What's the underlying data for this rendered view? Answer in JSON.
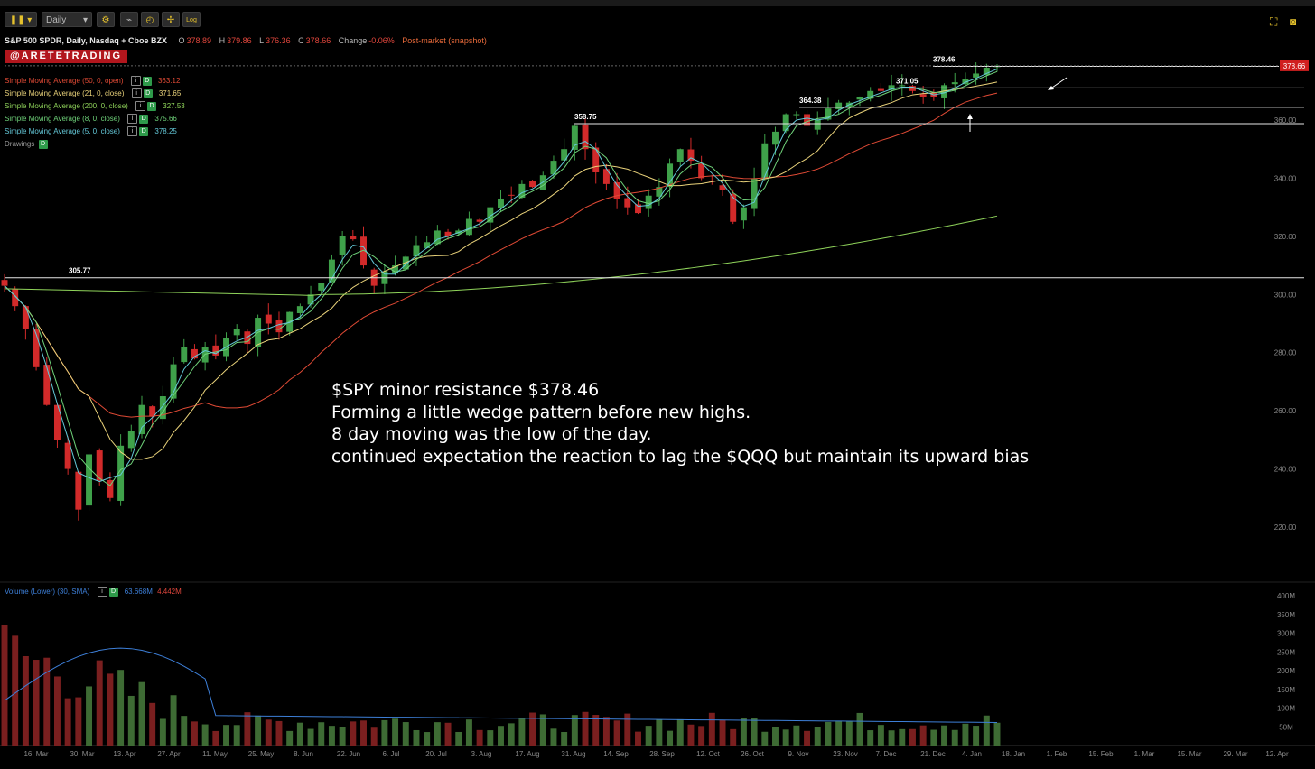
{
  "toolbar": {
    "timeframe": "Daily",
    "log_label": "Log",
    "icons": [
      "pause-icon",
      "chevron-down-icon",
      "gear-icon",
      "draw-icon",
      "clock-icon",
      "crosshair-icon",
      "log-scale-icon",
      "expand-icon",
      "camera-icon"
    ]
  },
  "header": {
    "symbol": "S&P 500 SPDR, Daily, Nasdaq + Cboe BZX",
    "open_label": "O",
    "open": "378.89",
    "high_label": "H",
    "high": "379.86",
    "low_label": "L",
    "low": "376.36",
    "close_label": "C",
    "close": "378.66",
    "change_label": "Change",
    "change": "-0.06%",
    "post": "Post-market (snapshot)"
  },
  "watermark": "@ARETETRADING",
  "studies": [
    {
      "name": "Simple Moving Average (50, 0, open)",
      "value": "363.12",
      "color": "#e04a35"
    },
    {
      "name": "Simple Moving Average (21, 0, close)",
      "value": "371.65",
      "color": "#e9d27a"
    },
    {
      "name": "Simple Moving Average (200, 0, close)",
      "value": "327.53",
      "color": "#8fd35a"
    },
    {
      "name": "Simple Moving Average (8, 0, close)",
      "value": "375.66",
      "color": "#6fd27a"
    },
    {
      "name": "Simple Moving Average (5, 0, close)",
      "value": "378.25",
      "color": "#64c8d8"
    }
  ],
  "drawings_label": "Drawings",
  "volume_study": {
    "name": "Volume (Lower) (30, SMA)",
    "sma": "63.668M",
    "last": "4.442M"
  },
  "price_tag": "378.66",
  "annotation": [
    "$SPY minor resistance $378.46",
    "Forming a little wedge pattern before new highs.",
    "8 day moving was the low of the day.",
    "continued expectation the reaction to lag the $QQQ but maintain its upward bias"
  ],
  "levels": [
    "305.77",
    "358.75",
    "364.38",
    "371.05",
    "378.46"
  ],
  "chart_data": {
    "type": "candlestick",
    "title": "S&P 500 SPDR, Daily, Nasdaq + Cboe BZX",
    "ylim": [
      210,
      390
    ],
    "y_ticks": [
      220,
      240,
      260,
      280,
      300,
      320,
      340,
      360
    ],
    "y_tick_labels": [
      "220.00",
      "240.00",
      "260.00",
      "280.00",
      "300.00",
      "320.00",
      "340.00",
      "360.00"
    ],
    "volume_ylim": [
      0,
      400
    ],
    "volume_ticks": [
      50,
      100,
      150,
      200,
      250,
      300,
      350,
      400
    ],
    "volume_tick_labels": [
      "50M",
      "100M",
      "150M",
      "200M",
      "250M",
      "300M",
      "350M",
      "400M"
    ],
    "x_tick_labels": [
      "16. Mar",
      "30. Mar",
      "13. Apr",
      "27. Apr",
      "11. May",
      "25. May",
      "8. Jun",
      "22. Jun",
      "6. Jul",
      "20. Jul",
      "3. Aug",
      "17. Aug",
      "31. Aug",
      "14. Sep",
      "28. Sep",
      "12. Oct",
      "26. Oct",
      "9. Nov",
      "23. Nov",
      "7. Dec",
      "21. Dec",
      "4. Jan",
      "18. Jan",
      "1. Feb",
      "15. Feb",
      "1. Mar",
      "15. Mar",
      "29. Mar",
      "12. Apr"
    ],
    "horizontal_levels": [
      305.77,
      358.75,
      364.38,
      371.05,
      378.46
    ],
    "series": [
      {
        "name": "Price (daily close, approx.)",
        "values": [
          303,
          296,
          288,
          275,
          262,
          250,
          240,
          226,
          245,
          236,
          230,
          248,
          253,
          262,
          258,
          265,
          276,
          282,
          278,
          282,
          279,
          285,
          288,
          283,
          292,
          290,
          287,
          294,
          296,
          300,
          304,
          312,
          320,
          319,
          310,
          303,
          308,
          310,
          313,
          317,
          318,
          322,
          320,
          322,
          326,
          325,
          330,
          333,
          334,
          338,
          337,
          341,
          346,
          350,
          358,
          350,
          342,
          338,
          333,
          330,
          328,
          334,
          337,
          345,
          350,
          346,
          340,
          339,
          336,
          325,
          330,
          340,
          352,
          356,
          362,
          362,
          358,
          360,
          364,
          366,
          366,
          368,
          370,
          370,
          372,
          372,
          370,
          368,
          368,
          372,
          373,
          374,
          376,
          378,
          378.66
        ]
      },
      {
        "name": "Simple Moving Average (50, 0, open)",
        "value": 363.12
      },
      {
        "name": "Simple Moving Average (21, 0, close)",
        "value": 371.65
      },
      {
        "name": "Simple Moving Average (200, 0, close)",
        "value": 327.53
      },
      {
        "name": "Simple Moving Average (8, 0, close)",
        "value": 375.66
      },
      {
        "name": "Simple Moving Average (5, 0, close)",
        "value": 378.25
      }
    ]
  }
}
